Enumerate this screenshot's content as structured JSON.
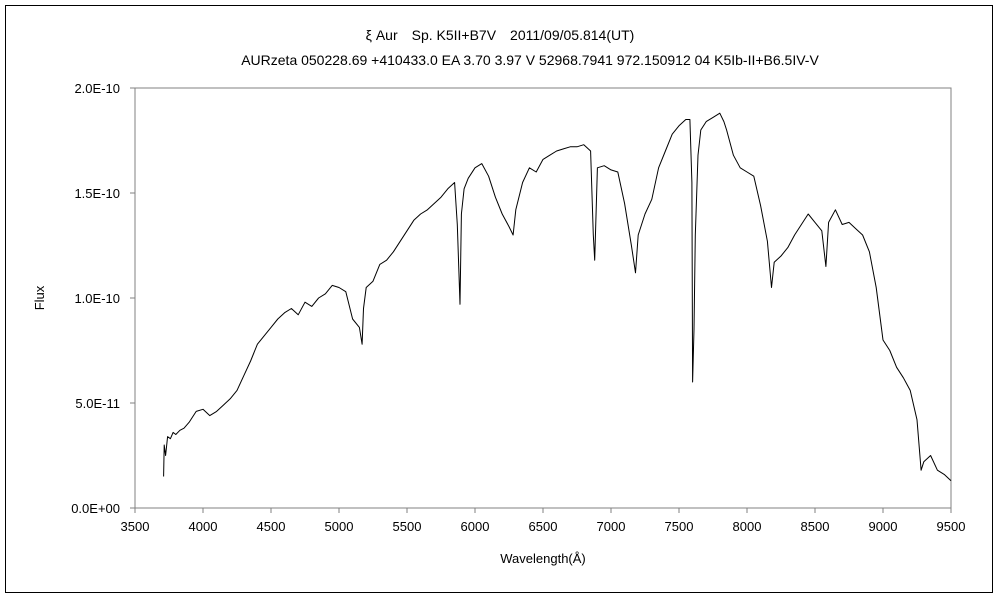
{
  "chart_data": {
    "type": "line",
    "title": "ξ Aur　Sp. K5II+B7V　2011/09/05.814(UT)",
    "subtitle": "AURzeta 050228.69 +410433.0 EA 3.70 3.97 V 52968.7941 972.150912 04 K5Ib-II+B6.5IV-V",
    "xlabel": "Wavelength(Å)",
    "ylabel": "Flux",
    "xlim": [
      3500,
      9500
    ],
    "ylim": [
      0,
      2e-10
    ],
    "x_ticks": [
      3500,
      4000,
      4500,
      5000,
      5500,
      6000,
      6500,
      7000,
      7500,
      8000,
      8500,
      9000,
      9500
    ],
    "x_tick_labels": [
      "3500",
      "4000",
      "4500",
      "5000",
      "5500",
      "6000",
      "6500",
      "7000",
      "7500",
      "8000",
      "8500",
      "9000",
      "9500"
    ],
    "y_ticks": [
      0,
      5e-11,
      1e-10,
      1.5e-10,
      2e-10
    ],
    "y_tick_labels": [
      "0.0E+00",
      "5.0E-11",
      "1.0E-10",
      "1.5E-10",
      "2.0E-10"
    ],
    "grid": false,
    "line_color": "#000000",
    "series": [
      {
        "x": [
          3710,
          3715,
          3725,
          3740,
          3760,
          3780,
          3800,
          3830,
          3860,
          3900,
          3950,
          4000,
          4050,
          4100,
          4150,
          4200,
          4250,
          4300,
          4350,
          4400,
          4450,
          4500,
          4550,
          4600,
          4650,
          4700,
          4750,
          4800,
          4850,
          4900,
          4950,
          5000,
          5050,
          5100,
          5150,
          5170,
          5180,
          5200,
          5250,
          5300,
          5350,
          5400,
          5450,
          5500,
          5550,
          5600,
          5650,
          5700,
          5750,
          5800,
          5850,
          5870,
          5890,
          5900,
          5920,
          5950,
          6000,
          6050,
          6100,
          6150,
          6200,
          6250,
          6280,
          6300,
          6350,
          6400,
          6450,
          6500,
          6550,
          6600,
          6650,
          6700,
          6750,
          6800,
          6850,
          6870,
          6880,
          6900,
          6950,
          7000,
          7050,
          7100,
          7150,
          7180,
          7200,
          7250,
          7300,
          7350,
          7400,
          7450,
          7500,
          7550,
          7580,
          7595,
          7600,
          7610,
          7620,
          7640,
          7660,
          7700,
          7750,
          7800,
          7830,
          7850,
          7900,
          7950,
          8000,
          8050,
          8100,
          8150,
          8180,
          8200,
          8250,
          8300,
          8350,
          8400,
          8450,
          8500,
          8550,
          8580,
          8600,
          8650,
          8700,
          8750,
          8800,
          8850,
          8900,
          8950,
          9000,
          9050,
          9100,
          9150,
          9200,
          9250,
          9280,
          9300,
          9350,
          9400,
          9450,
          9500
        ],
        "y": [
          1.5e-11,
          3e-11,
          2.5e-11,
          3.4e-11,
          3.3e-11,
          3.6e-11,
          3.5e-11,
          3.7e-11,
          3.8e-11,
          4.1e-11,
          4.6e-11,
          4.7e-11,
          4.4e-11,
          4.6e-11,
          4.9e-11,
          5.2e-11,
          5.6e-11,
          6.3e-11,
          7e-11,
          7.8e-11,
          8.2e-11,
          8.6e-11,
          9e-11,
          9.3e-11,
          9.5e-11,
          9.2e-11,
          9.8e-11,
          9.6e-11,
          1e-10,
          1.02e-10,
          1.06e-10,
          1.05e-10,
          1.03e-10,
          9e-11,
          8.6e-11,
          7.8e-11,
          9.5e-11,
          1.05e-10,
          1.08e-10,
          1.16e-10,
          1.18e-10,
          1.22e-10,
          1.27e-10,
          1.32e-10,
          1.37e-10,
          1.4e-10,
          1.42e-10,
          1.45e-10,
          1.48e-10,
          1.52e-10,
          1.55e-10,
          1.35e-10,
          9.7e-11,
          1.4e-10,
          1.52e-10,
          1.57e-10,
          1.62e-10,
          1.64e-10,
          1.58e-10,
          1.48e-10,
          1.4e-10,
          1.34e-10,
          1.3e-10,
          1.42e-10,
          1.55e-10,
          1.62e-10,
          1.6e-10,
          1.66e-10,
          1.68e-10,
          1.7e-10,
          1.71e-10,
          1.72e-10,
          1.72e-10,
          1.73e-10,
          1.7e-10,
          1.3e-10,
          1.18e-10,
          1.62e-10,
          1.63e-10,
          1.61e-10,
          1.6e-10,
          1.45e-10,
          1.25e-10,
          1.12e-10,
          1.3e-10,
          1.4e-10,
          1.47e-10,
          1.62e-10,
          1.7e-10,
          1.78e-10,
          1.82e-10,
          1.85e-10,
          1.85e-10,
          1.55e-10,
          6e-11,
          8.5e-11,
          1.3e-10,
          1.68e-10,
          1.8e-10,
          1.84e-10,
          1.86e-10,
          1.88e-10,
          1.84e-10,
          1.8e-10,
          1.68e-10,
          1.62e-10,
          1.6e-10,
          1.58e-10,
          1.44e-10,
          1.27e-10,
          1.05e-10,
          1.17e-10,
          1.2e-10,
          1.24e-10,
          1.3e-10,
          1.35e-10,
          1.4e-10,
          1.36e-10,
          1.32e-10,
          1.15e-10,
          1.36e-10,
          1.42e-10,
          1.35e-10,
          1.36e-10,
          1.33e-10,
          1.3e-10,
          1.22e-10,
          1.05e-10,
          8e-11,
          7.5e-11,
          6.7e-11,
          6.2e-11,
          5.6e-11,
          4.2e-11,
          1.8e-11,
          2.2e-11,
          2.5e-11,
          1.8e-11,
          1.6e-11,
          1.3e-11
        ]
      }
    ]
  }
}
